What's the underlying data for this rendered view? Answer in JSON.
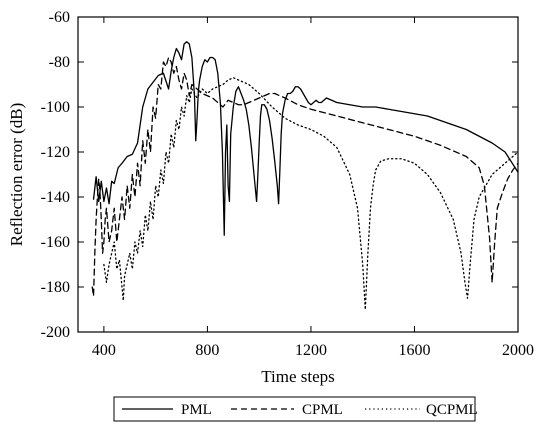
{
  "chart_data": {
    "type": "line",
    "title": "",
    "xlabel": "Time steps",
    "ylabel": "Reflection error (dB)",
    "xlim": [
      300,
      2000
    ],
    "ylim": [
      -200,
      -60
    ],
    "xticks": [
      400,
      800,
      1200,
      1600,
      2000
    ],
    "xtick_labels": [
      "400",
      "800",
      "1200",
      "1600",
      "2000"
    ],
    "yticks": [
      -200,
      -180,
      -160,
      -140,
      -120,
      -100,
      -80,
      -60
    ],
    "ytick_labels": [
      "-200",
      "-180",
      "-160",
      "-140",
      "-120",
      "-100",
      "-80",
      "-60"
    ],
    "grid": false,
    "legend_placement": "bottom-center",
    "series": [
      {
        "name": "PML",
        "style": "solid",
        "color": "#000000",
        "x": [
          360,
          370,
          380,
          390,
          400,
          410,
          420,
          430,
          440,
          455,
          470,
          490,
          510,
          530,
          550,
          570,
          590,
          610,
          630,
          650,
          660,
          670,
          680,
          690,
          700,
          710,
          720,
          730,
          740,
          750,
          755,
          760,
          765,
          770,
          780,
          790,
          800,
          810,
          820,
          830,
          840,
          850,
          858,
          865,
          870,
          875,
          880,
          885,
          890,
          900,
          910,
          920,
          930,
          940,
          950,
          960,
          970,
          980,
          990,
          995,
          1000,
          1005,
          1010,
          1020,
          1030,
          1040,
          1050,
          1060,
          1070,
          1075,
          1080,
          1085,
          1090,
          1100,
          1110,
          1120,
          1130,
          1140,
          1150,
          1160,
          1170,
          1180,
          1190,
          1200,
          1210,
          1220,
          1230,
          1240,
          1250,
          1260,
          1280,
          1300,
          1350,
          1400,
          1450,
          1500,
          1550,
          1600,
          1650,
          1700,
          1750,
          1800,
          1850,
          1900,
          1950,
          2000
        ],
        "y": [
          -141,
          -131,
          -142,
          -133,
          -142,
          -136,
          -143,
          -133,
          -134,
          -127,
          -125,
          -122,
          -121,
          -116,
          -100,
          -92,
          -89,
          -86,
          -85,
          -92,
          -84,
          -78,
          -74,
          -76,
          -79,
          -72,
          -71,
          -72,
          -78,
          -95,
          -115,
          -105,
          -93,
          -88,
          -82,
          -79,
          -80,
          -78,
          -78,
          -79,
          -85,
          -98,
          -120,
          -157,
          -120,
          -108,
          -135,
          -142,
          -112,
          -100,
          -93,
          -91,
          -94,
          -97,
          -101,
          -108,
          -118,
          -130,
          -142,
          -130,
          -116,
          -104,
          -99,
          -99,
          -101,
          -106,
          -114,
          -124,
          -135,
          -143,
          -128,
          -112,
          -103,
          -97,
          -94,
          -94,
          -93,
          -91,
          -91,
          -92,
          -94,
          -96,
          -98,
          -99,
          -98,
          -97,
          -98,
          -98,
          -97,
          -96,
          -97,
          -98,
          -99,
          -100,
          -100,
          -101,
          -102,
          -103,
          -104,
          -106,
          -108,
          -110,
          -113,
          -116,
          -120,
          -129
        ]
      },
      {
        "name": "CPML",
        "style": "dashed",
        "color": "#000000",
        "x": [
          355,
          360,
          365,
          370,
          375,
          380,
          385,
          390,
          395,
          400,
          405,
          410,
          420,
          430,
          440,
          450,
          460,
          470,
          480,
          490,
          500,
          510,
          520,
          530,
          540,
          550,
          560,
          570,
          580,
          590,
          600,
          610,
          620,
          630,
          640,
          650,
          660,
          670,
          680,
          690,
          700,
          710,
          720,
          730,
          740,
          760,
          780,
          800,
          820,
          840,
          860,
          880,
          900,
          920,
          940,
          960,
          980,
          1000,
          1020,
          1040,
          1060,
          1080,
          1100,
          1150,
          1200,
          1300,
          1400,
          1500,
          1600,
          1700,
          1800,
          1850,
          1870,
          1890,
          1900,
          1910,
          1920,
          1940,
          1960,
          1980,
          2000
        ],
        "y": [
          -180,
          -184,
          -165,
          -150,
          -140,
          -132,
          -138,
          -150,
          -165,
          -160,
          -150,
          -145,
          -160,
          -155,
          -145,
          -160,
          -150,
          -140,
          -150,
          -135,
          -145,
          -130,
          -140,
          -125,
          -135,
          -115,
          -125,
          -110,
          -120,
          -100,
          -105,
          -90,
          -92,
          -80,
          -82,
          -78,
          -80,
          -85,
          -82,
          -88,
          -92,
          -85,
          -88,
          -95,
          -90,
          -92,
          -94,
          -95,
          -96,
          -98,
          -100,
          -97,
          -98,
          -99,
          -99,
          -98,
          -97,
          -96,
          -95,
          -94,
          -94,
          -95,
          -96,
          -99,
          -101,
          -104,
          -107,
          -110,
          -113,
          -117,
          -122,
          -127,
          -135,
          -158,
          -178,
          -160,
          -145,
          -138,
          -132,
          -128,
          -125
        ]
      },
      {
        "name": "QCPML",
        "style": "dotted",
        "color": "#000000",
        "x": [
          400,
          410,
          420,
          430,
          440,
          450,
          460,
          470,
          475,
          480,
          490,
          500,
          510,
          520,
          530,
          540,
          550,
          560,
          570,
          580,
          590,
          600,
          610,
          620,
          630,
          640,
          650,
          660,
          670,
          680,
          690,
          700,
          710,
          720,
          730,
          740,
          760,
          780,
          800,
          820,
          840,
          860,
          880,
          900,
          920,
          940,
          960,
          980,
          1000,
          1050,
          1100,
          1150,
          1200,
          1250,
          1300,
          1350,
          1380,
          1400,
          1410,
          1420,
          1430,
          1440,
          1450,
          1470,
          1500,
          1550,
          1600,
          1650,
          1700,
          1750,
          1780,
          1795,
          1805,
          1815,
          1830,
          1850,
          1900,
          1950,
          2000
        ],
        "y": [
          -170,
          -178,
          -170,
          -165,
          -160,
          -172,
          -168,
          -180,
          -186,
          -175,
          -170,
          -165,
          -172,
          -160,
          -165,
          -155,
          -162,
          -148,
          -155,
          -142,
          -150,
          -135,
          -140,
          -128,
          -134,
          -120,
          -125,
          -112,
          -118,
          -106,
          -110,
          -100,
          -104,
          -95,
          -98,
          -92,
          -96,
          -92,
          -94,
          -92,
          -91,
          -90,
          -88,
          -87,
          -88,
          -89,
          -90,
          -92,
          -94,
          -100,
          -105,
          -108,
          -110,
          -113,
          -118,
          -130,
          -145,
          -170,
          -190,
          -165,
          -145,
          -135,
          -128,
          -124,
          -123,
          -123,
          -125,
          -130,
          -138,
          -150,
          -165,
          -178,
          -185,
          -170,
          -150,
          -140,
          -130,
          -125,
          -120
        ]
      }
    ]
  }
}
